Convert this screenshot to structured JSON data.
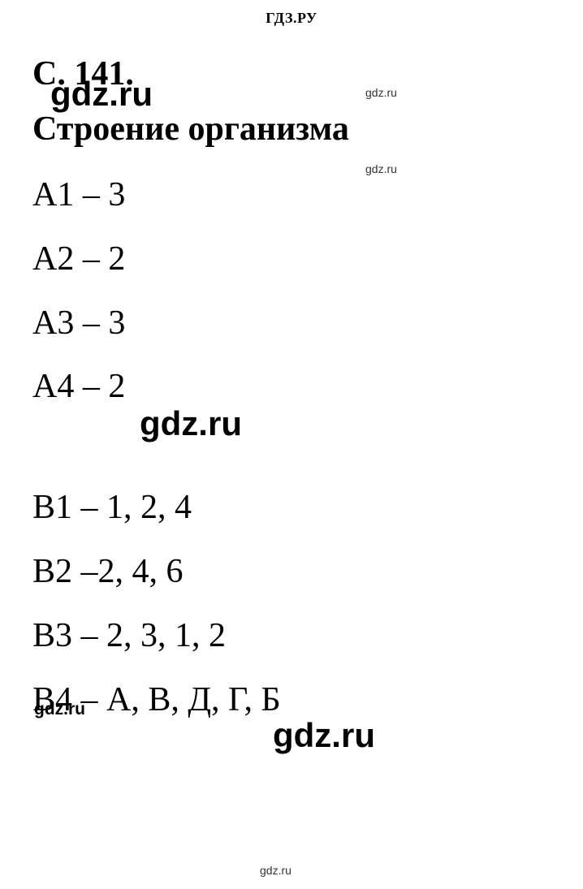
{
  "header": "ГДЗ.РУ",
  "page_ref": "С. 141.",
  "section_title": "Строение организма",
  "answers_a": [
    {
      "label": "А1",
      "value": "3"
    },
    {
      "label": "А2",
      "value": "2"
    },
    {
      "label": "А3",
      "value": "3"
    },
    {
      "label": "А4",
      "value": "2"
    }
  ],
  "answers_b": [
    {
      "label": "В1",
      "value": "1, 2, 4"
    },
    {
      "label": "В2",
      "value": "2, 4, 6",
      "dash": "–"
    },
    {
      "label": "В3",
      "value": "2, 3, 1, 2"
    },
    {
      "label": "В4",
      "value": "А, В, Д, Г, Б"
    }
  ],
  "watermark_text": "gdz.ru",
  "colors": {
    "background": "#ffffff",
    "text": "#000000"
  },
  "typography": {
    "header_fontsize": 18,
    "title_fontsize": 42,
    "body_fontsize": 42,
    "font_family": "Times New Roman"
  }
}
